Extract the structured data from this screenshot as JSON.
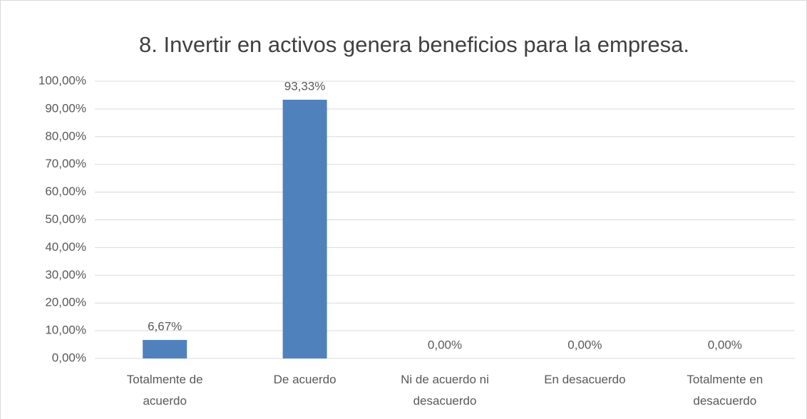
{
  "chart_data": {
    "type": "bar",
    "title": "8. Invertir en activos genera beneficios para la empresa.",
    "categories": [
      "Totalmente de acuerdo",
      "De acuerdo",
      "Ni de acuerdo ni desacuerdo",
      "En desacuerdo",
      "Totalmente en desacuerdo"
    ],
    "values": [
      6.67,
      93.33,
      0,
      0,
      0
    ],
    "value_labels": [
      "6,67%",
      "93,33%",
      "0,00%",
      "0,00%",
      "0,00%"
    ],
    "color": "#4f81bd",
    "ylim": [
      0,
      100
    ],
    "yticks": [
      {
        "value": 0,
        "label": "0,00%"
      },
      {
        "value": 10,
        "label": "10,00%"
      },
      {
        "value": 20,
        "label": "20,00%"
      },
      {
        "value": 30,
        "label": "30,00%"
      },
      {
        "value": 40,
        "label": "40,00%"
      },
      {
        "value": 50,
        "label": "50,00%"
      },
      {
        "value": 60,
        "label": "60,00%"
      },
      {
        "value": 70,
        "label": "70,00%"
      },
      {
        "value": 80,
        "label": "80,00%"
      },
      {
        "value": 90,
        "label": "90,00%"
      },
      {
        "value": 100,
        "label": "100,00%"
      }
    ],
    "grid": true
  }
}
